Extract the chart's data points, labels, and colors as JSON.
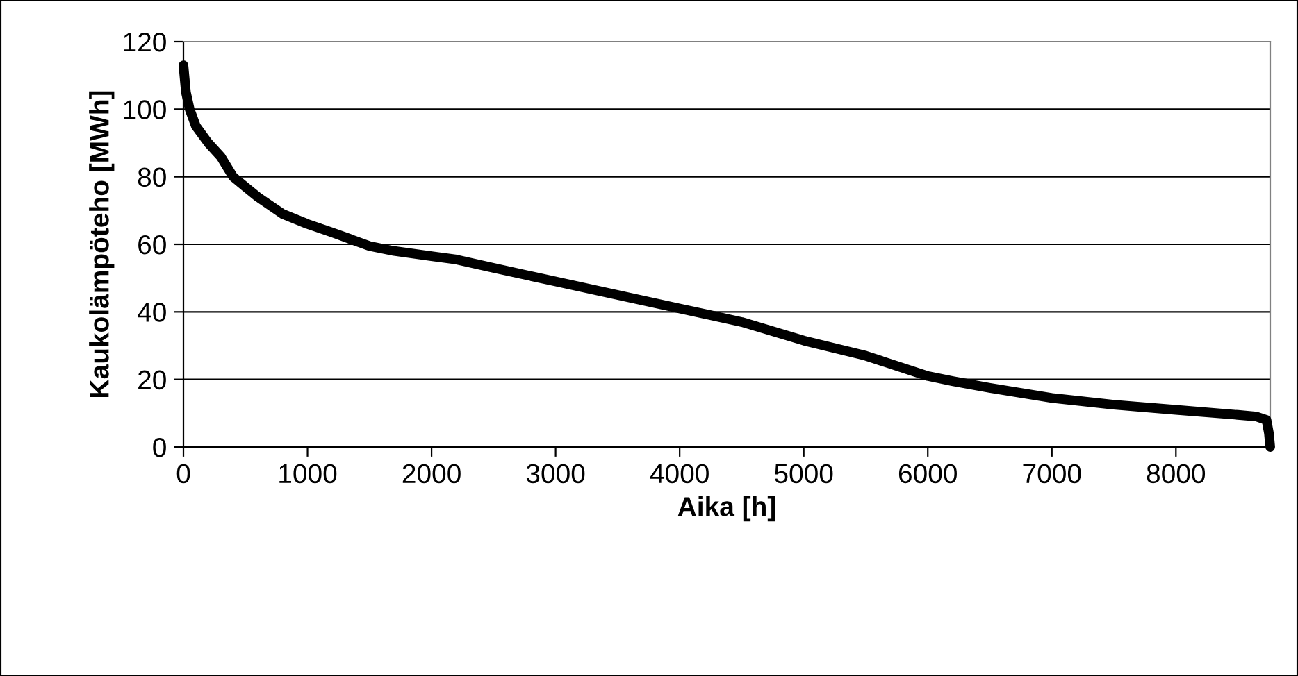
{
  "chart_data": {
    "type": "line",
    "xlabel": "Aika [h]",
    "ylabel": "Kaukolämpöteho [MWh]",
    "x": [
      0,
      20,
      50,
      100,
      200,
      300,
      400,
      500,
      600,
      800,
      1000,
      1200,
      1500,
      1700,
      2000,
      2200,
      2500,
      3000,
      3500,
      4000,
      4500,
      5000,
      5500,
      6000,
      6200,
      6500,
      7000,
      7500,
      8000,
      8500,
      8650,
      8730,
      8750,
      8760
    ],
    "series": [
      {
        "color": "#000000",
        "values": [
          113,
          105,
          100,
          95,
          90,
          86,
          80,
          77,
          74,
          69,
          66,
          63.5,
          59.5,
          58,
          56.5,
          55.5,
          53,
          49,
          45,
          41,
          37,
          31.5,
          27,
          21,
          19.5,
          17.5,
          14.5,
          12.5,
          11,
          9.5,
          9,
          8,
          4,
          0
        ]
      }
    ],
    "xlim": [
      0,
      8760
    ],
    "xticks": [
      0,
      1000,
      2000,
      3000,
      4000,
      5000,
      6000,
      7000,
      8000
    ],
    "ylim": [
      0,
      120
    ],
    "yticks": [
      0,
      20,
      40,
      60,
      80,
      100,
      120
    ],
    "grid": "y",
    "legend": false,
    "marker": "none",
    "line_style": "solid"
  }
}
